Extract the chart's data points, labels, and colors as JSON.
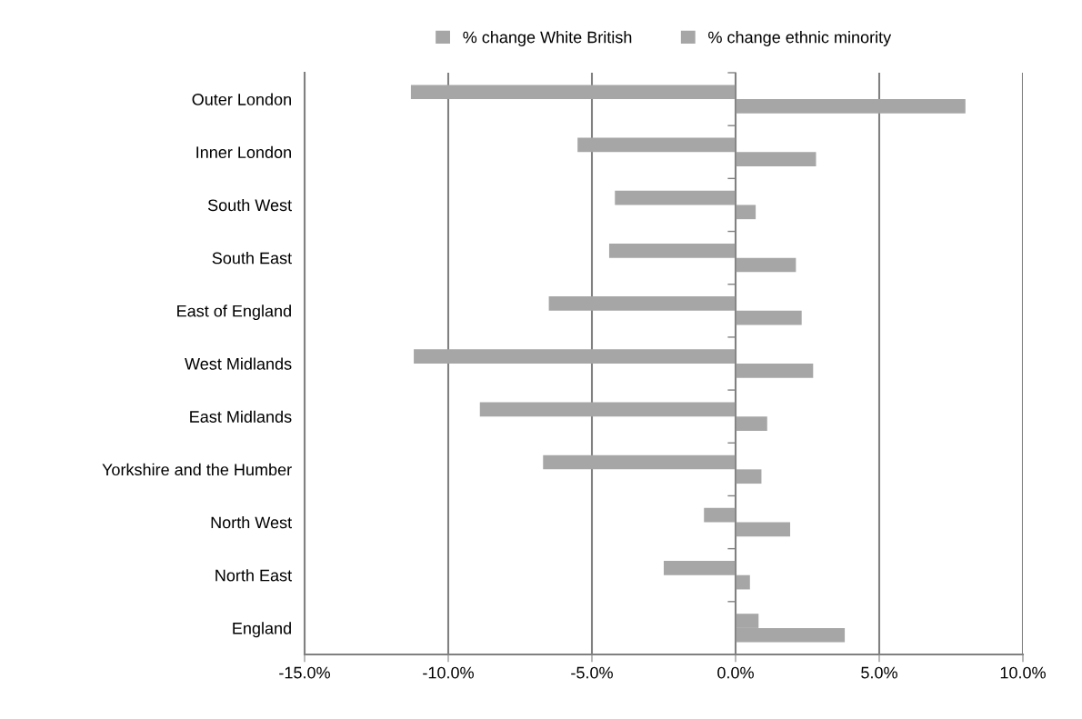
{
  "chart_data": {
    "type": "bar",
    "orientation": "horizontal",
    "categories": [
      "Outer London",
      "Inner London",
      "South West",
      "South East",
      "East of England",
      "West Midlands",
      "East Midlands",
      "Yorkshire and the Humber",
      "North West",
      " North East",
      "England"
    ],
    "series": [
      {
        "name": "% change White British",
        "color": "#a6a6a6",
        "values": [
          -11.3,
          -5.5,
          -4.2,
          -4.4,
          -6.5,
          -11.2,
          -8.9,
          -6.7,
          -1.1,
          -2.5,
          0.8
        ]
      },
      {
        "name": "% change ethnic minority",
        "color": "#a6a6a6",
        "values": [
          8.0,
          2.8,
          0.7,
          2.1,
          2.3,
          2.7,
          1.1,
          0.9,
          1.9,
          0.5,
          3.8
        ]
      }
    ],
    "xlim": [
      -15,
      10
    ],
    "xticks": [
      {
        "value": -15,
        "label": "-15.0%"
      },
      {
        "value": -10,
        "label": "-10.0%"
      },
      {
        "value": -5,
        "label": "-5.0%"
      },
      {
        "value": 0,
        "label": "0.0%"
      },
      {
        "value": 5,
        "label": "5.0%"
      },
      {
        "value": 10,
        "label": "10.0%"
      }
    ],
    "grid": "x",
    "legend": "top"
  }
}
